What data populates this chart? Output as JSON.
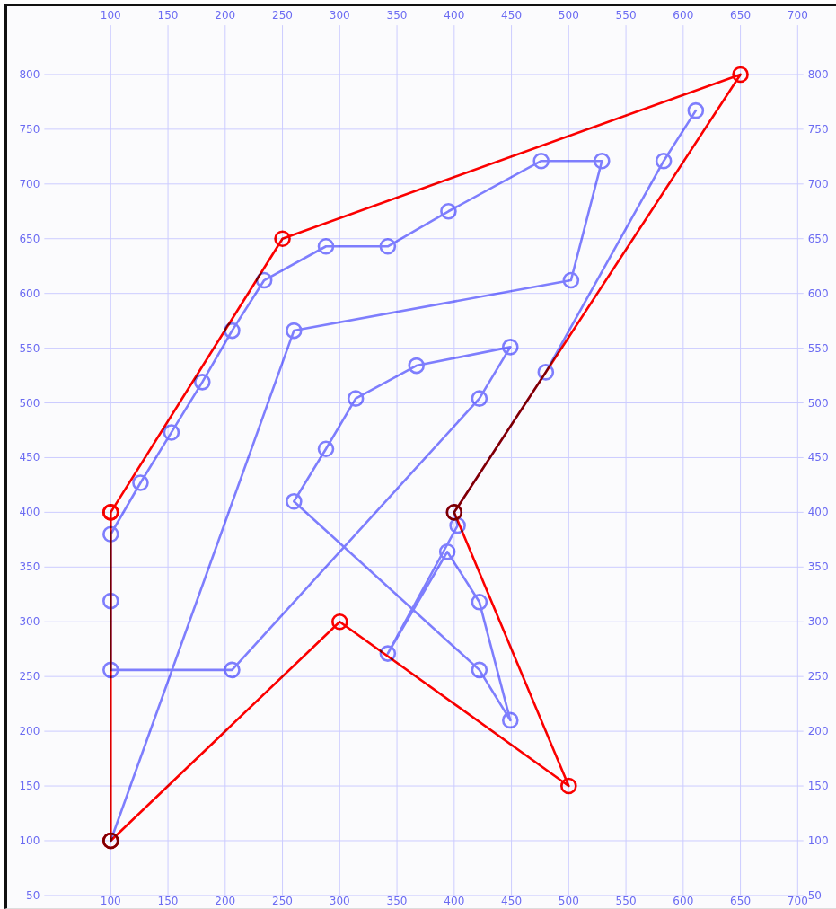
{
  "chart_data": {
    "type": "line",
    "xlim": [
      42,
      705
    ],
    "xticks": [
      100,
      150,
      200,
      250,
      300,
      350,
      400,
      450,
      500,
      550,
      600,
      650,
      700
    ],
    "x2lim": [
      42,
      705
    ],
    "x2ticks": [
      100,
      150,
      200,
      250,
      300,
      350,
      400,
      450,
      500,
      550,
      600,
      650,
      700
    ],
    "ylim": [
      50,
      845
    ],
    "yticks": [
      50,
      100,
      150,
      200,
      250,
      300,
      350,
      400,
      450,
      500,
      550,
      600,
      650,
      700,
      750,
      800
    ],
    "y2lim": [
      50,
      845
    ],
    "y2ticks": [
      50,
      100,
      150,
      200,
      250,
      300,
      350,
      400,
      450,
      500,
      550,
      600,
      650,
      700,
      750,
      800
    ],
    "grid": true,
    "marker": "circle",
    "line_style": "solid",
    "series": [
      {
        "color": "#8080ff",
        "x": [
          611,
          583,
          480,
          400,
          403,
          342,
          394,
          422,
          449,
          422,
          260,
          288,
          314,
          367,
          449,
          422,
          206,
          100,
          100,
          100,
          126,
          153,
          180,
          206,
          234,
          288,
          342,
          395,
          476,
          529,
          502,
          260,
          100
        ],
        "values": [
          767,
          721,
          528,
          400,
          388,
          271,
          364,
          318,
          210,
          256,
          410,
          458,
          504,
          534,
          551,
          504,
          256,
          256,
          319,
          380,
          427,
          473,
          519,
          566,
          612,
          643,
          643,
          675,
          721,
          721,
          612,
          566,
          100
        ]
      },
      {
        "color": "#ff0000",
        "x": [
          100,
          100,
          250,
          650,
          400,
          500,
          300,
          100,
          100
        ],
        "values": [
          100,
          400,
          650,
          800,
          400,
          150,
          300,
          100,
          400
        ]
      }
    ]
  }
}
